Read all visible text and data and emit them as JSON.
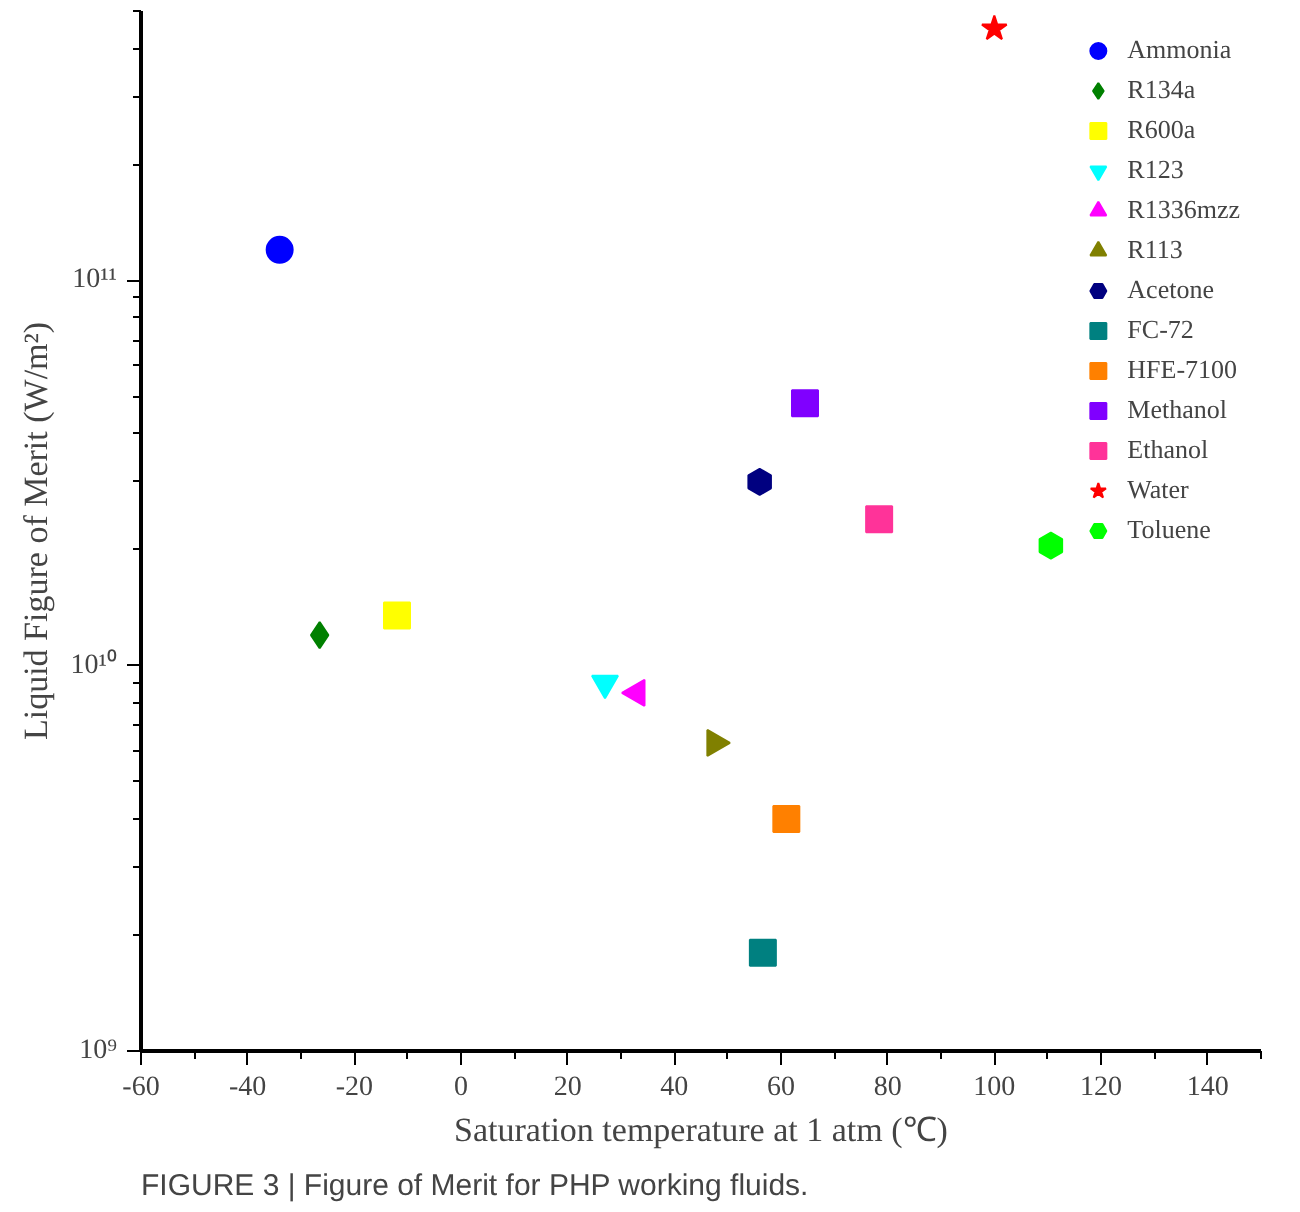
{
  "chart_data": {
    "type": "scatter",
    "xlabel": "Saturation temperature at 1 atm (℃)",
    "ylabel": "Liquid Figure of Merit (W/m²)",
    "log": "y",
    "grid": false,
    "legend": "top right",
    "xlim": [
      -60,
      150
    ],
    "xticks": [
      -60,
      -40,
      -20,
      0,
      20,
      40,
      60,
      80,
      100,
      120,
      140
    ],
    "ylim": [
      1000000000.0,
      500000000000.0
    ],
    "yticks": [
      {
        "value": 1000000000.0,
        "label": "10⁹"
      },
      {
        "value": 10000000000.0,
        "label": "10¹⁰"
      },
      {
        "value": 100000000000.0,
        "label": "10¹¹"
      }
    ],
    "annotations": [
      "FIGURE 3 | Figure of Merit for PHP working fluids."
    ],
    "series": [
      {
        "name": "Ammonia",
        "color": "#0000ff",
        "marker": "circle",
        "x": [
          -34
        ],
        "values": [
          120000000000.0
        ]
      },
      {
        "name": "R134a",
        "color": "#008000",
        "marker": "diamond",
        "x": [
          -26.5
        ],
        "values": [
          12000000000.0
        ]
      },
      {
        "name": "R600a",
        "color": "#ffff00",
        "marker": "square",
        "x": [
          -12
        ],
        "values": [
          13500000000.0
        ]
      },
      {
        "name": "R123",
        "color": "#00ffff",
        "marker": "triangle_down",
        "x": [
          27
        ],
        "values": [
          9000000000.0
        ]
      },
      {
        "name": "R1336mzz",
        "color": "#ff00ff",
        "marker": "triangle_left",
        "x": [
          33
        ],
        "values": [
          8500000000.0
        ]
      },
      {
        "name": "R113",
        "color": "#808000",
        "marker": "triangle_right",
        "x": [
          47.6
        ],
        "values": [
          6300000000.0
        ]
      },
      {
        "name": "Acetone",
        "color": "#000080",
        "x": [
          56
        ],
        "values": [
          30000000000.0
        ]
      },
      {
        "name": "FC-72",
        "color": "#008080",
        "marker": "square",
        "x": [
          56.6
        ],
        "values": [
          1800000000.0
        ]
      },
      {
        "name": "HFE-7100",
        "color": "#ff8000",
        "marker": "square",
        "x": [
          61
        ],
        "values": [
          4000000000.0
        ]
      },
      {
        "name": "Methanol",
        "color": "#8000ff",
        "marker": "square",
        "x": [
          64.5
        ],
        "values": [
          48000000000.0
        ]
      },
      {
        "name": "Ethanol",
        "color": "#ff3399",
        "marker": "square",
        "x": [
          78.4
        ],
        "values": [
          24000000000.0
        ]
      },
      {
        "name": "Water",
        "color": "#ff0000",
        "marker": "star",
        "x": [
          100
        ],
        "values": [
          450000000000.0
        ]
      },
      {
        "name": "Toluene",
        "color": "#00ff00",
        "x": [
          110.6
        ],
        "values": [
          20500000000.0
        ]
      }
    ]
  }
}
